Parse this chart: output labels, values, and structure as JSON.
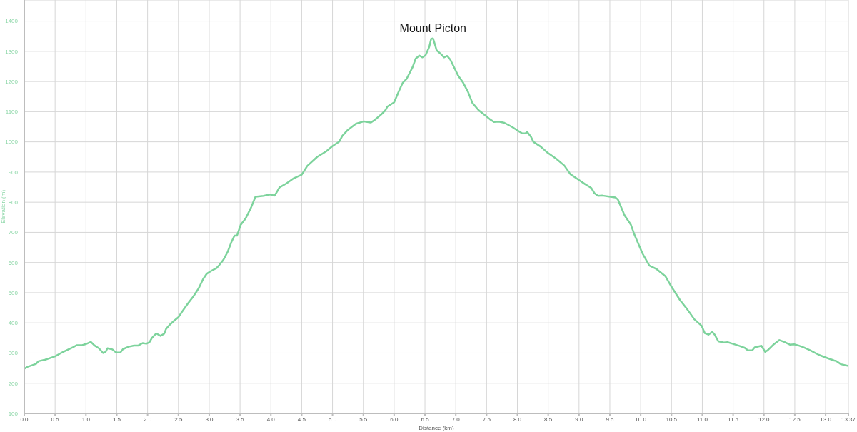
{
  "chart_data": {
    "type": "line",
    "x": [
      0,
      0.05,
      0.19,
      0.23,
      0.34,
      0.5,
      0.63,
      0.79,
      0.85,
      0.94,
      1.0,
      1.08,
      1.14,
      1.21,
      1.28,
      1.32,
      1.35,
      1.43,
      1.47,
      1.5,
      1.56,
      1.6,
      1.69,
      1.78,
      1.85,
      1.92,
      1.98,
      2.03,
      2.07,
      2.14,
      2.21,
      2.27,
      2.3,
      2.36,
      2.43,
      2.5,
      2.56,
      2.65,
      2.74,
      2.83,
      2.9,
      2.96,
      3.03,
      3.12,
      3.16,
      3.23,
      3.3,
      3.36,
      3.41,
      3.45,
      3.51,
      3.59,
      3.68,
      3.75,
      3.88,
      3.99,
      4.06,
      4.1,
      4.14,
      4.25,
      4.36,
      4.5,
      4.59,
      4.75,
      4.9,
      5.0,
      5.11,
      5.16,
      5.24,
      5.38,
      5.51,
      5.62,
      5.68,
      5.78,
      5.86,
      5.89,
      6.0,
      6.07,
      6.14,
      6.2,
      6.3,
      6.35,
      6.41,
      6.46,
      6.51,
      6.57,
      6.6,
      6.63,
      6.65,
      6.69,
      6.76,
      6.81,
      6.86,
      6.91,
      6.99,
      7.04,
      7.12,
      7.2,
      7.27,
      7.37,
      7.47,
      7.56,
      7.62,
      7.7,
      7.79,
      7.91,
      8.0,
      8.08,
      8.13,
      8.16,
      8.22,
      8.26,
      8.38,
      8.49,
      8.63,
      8.76,
      8.86,
      8.99,
      9.09,
      9.2,
      9.25,
      9.31,
      9.38,
      9.51,
      9.59,
      9.63,
      9.74,
      9.84,
      9.89,
      10.03,
      10.14,
      10.26,
      10.4,
      10.49,
      10.64,
      10.76,
      10.87,
      10.99,
      11.04,
      11.1,
      11.16,
      11.2,
      11.26,
      11.35,
      11.41,
      11.49,
      11.6,
      11.69,
      11.74,
      11.81,
      11.85,
      11.96,
      11.98,
      12.02,
      12.06,
      12.16,
      12.25,
      12.33,
      12.42,
      12.49,
      12.56,
      12.64,
      12.75,
      12.89,
      13.02,
      13.14,
      13.17,
      13.25,
      13.37
    ],
    "values": [
      248,
      254,
      264,
      273,
      278,
      289,
      304,
      319,
      326,
      326,
      330,
      337,
      325,
      316,
      300,
      304,
      316,
      312,
      305,
      302,
      302,
      313,
      321,
      325,
      325,
      333,
      331,
      336,
      350,
      365,
      357,
      364,
      380,
      394,
      407,
      419,
      437,
      463,
      487,
      515,
      545,
      563,
      572,
      582,
      591,
      609,
      636,
      668,
      689,
      689,
      725,
      746,
      783,
      818,
      821,
      826,
      822,
      835,
      849,
      862,
      878,
      891,
      920,
      950,
      969,
      986,
      1001,
      1020,
      1038,
      1060,
      1068,
      1064,
      1072,
      1089,
      1105,
      1117,
      1131,
      1165,
      1196,
      1208,
      1248,
      1276,
      1286,
      1280,
      1287,
      1315,
      1341,
      1343,
      1331,
      1303,
      1291,
      1280,
      1285,
      1273,
      1240,
      1219,
      1196,
      1165,
      1129,
      1105,
      1089,
      1074,
      1066,
      1067,
      1063,
      1050,
      1038,
      1028,
      1028,
      1033,
      1017,
      1000,
      984,
      964,
      944,
      922,
      893,
      875,
      861,
      847,
      830,
      821,
      822,
      818,
      816,
      809,
      756,
      726,
      697,
      630,
      590,
      578,
      555,
      523,
      475,
      444,
      412,
      390,
      366,
      361,
      370,
      361,
      339,
      335,
      336,
      331,
      324,
      317,
      309,
      309,
      319,
      324,
      317,
      304,
      309,
      329,
      343,
      337,
      328,
      329,
      325,
      319,
      309,
      294,
      284,
      275,
      274,
      263,
      257
    ],
    "color": "#7dd39c",
    "xlabel": "Distance (km)",
    "ylabel": "Elevation (m)",
    "annotations": [
      {
        "text": "Mount Picton",
        "x": 6.63,
        "y": 1343
      }
    ],
    "xlim": [
      0,
      13.37
    ],
    "ylim": [
      100,
      1470
    ],
    "xticks": [
      {
        "value": 0,
        "label": "0.0"
      },
      0.5,
      {
        "value": 1,
        "label": "1.0"
      },
      1.5,
      {
        "value": 2,
        "label": "2.0"
      },
      2.5,
      {
        "value": 3,
        "label": "3.0"
      },
      3.5,
      {
        "value": 4,
        "label": "4.0"
      },
      4.5,
      {
        "value": 5,
        "label": "5.0"
      },
      5.5,
      {
        "value": 6,
        "label": "6.0"
      },
      6.5,
      {
        "value": 7,
        "label": "7.0"
      },
      7.5,
      {
        "value": 8,
        "label": "8.0"
      },
      8.5,
      {
        "value": 9,
        "label": "9.0"
      },
      9.5,
      {
        "value": 10,
        "label": "10.0"
      },
      10.5,
      {
        "value": 11,
        "label": "11.0"
      },
      11.5,
      {
        "value": 12,
        "label": "12.0"
      },
      12.5,
      {
        "value": 13,
        "label": "13.0"
      },
      13.37
    ],
    "yticks": [
      100,
      200,
      300,
      400,
      500,
      600,
      700,
      800,
      900,
      1000,
      1100,
      1200,
      1300,
      1400
    ],
    "grid": true
  }
}
